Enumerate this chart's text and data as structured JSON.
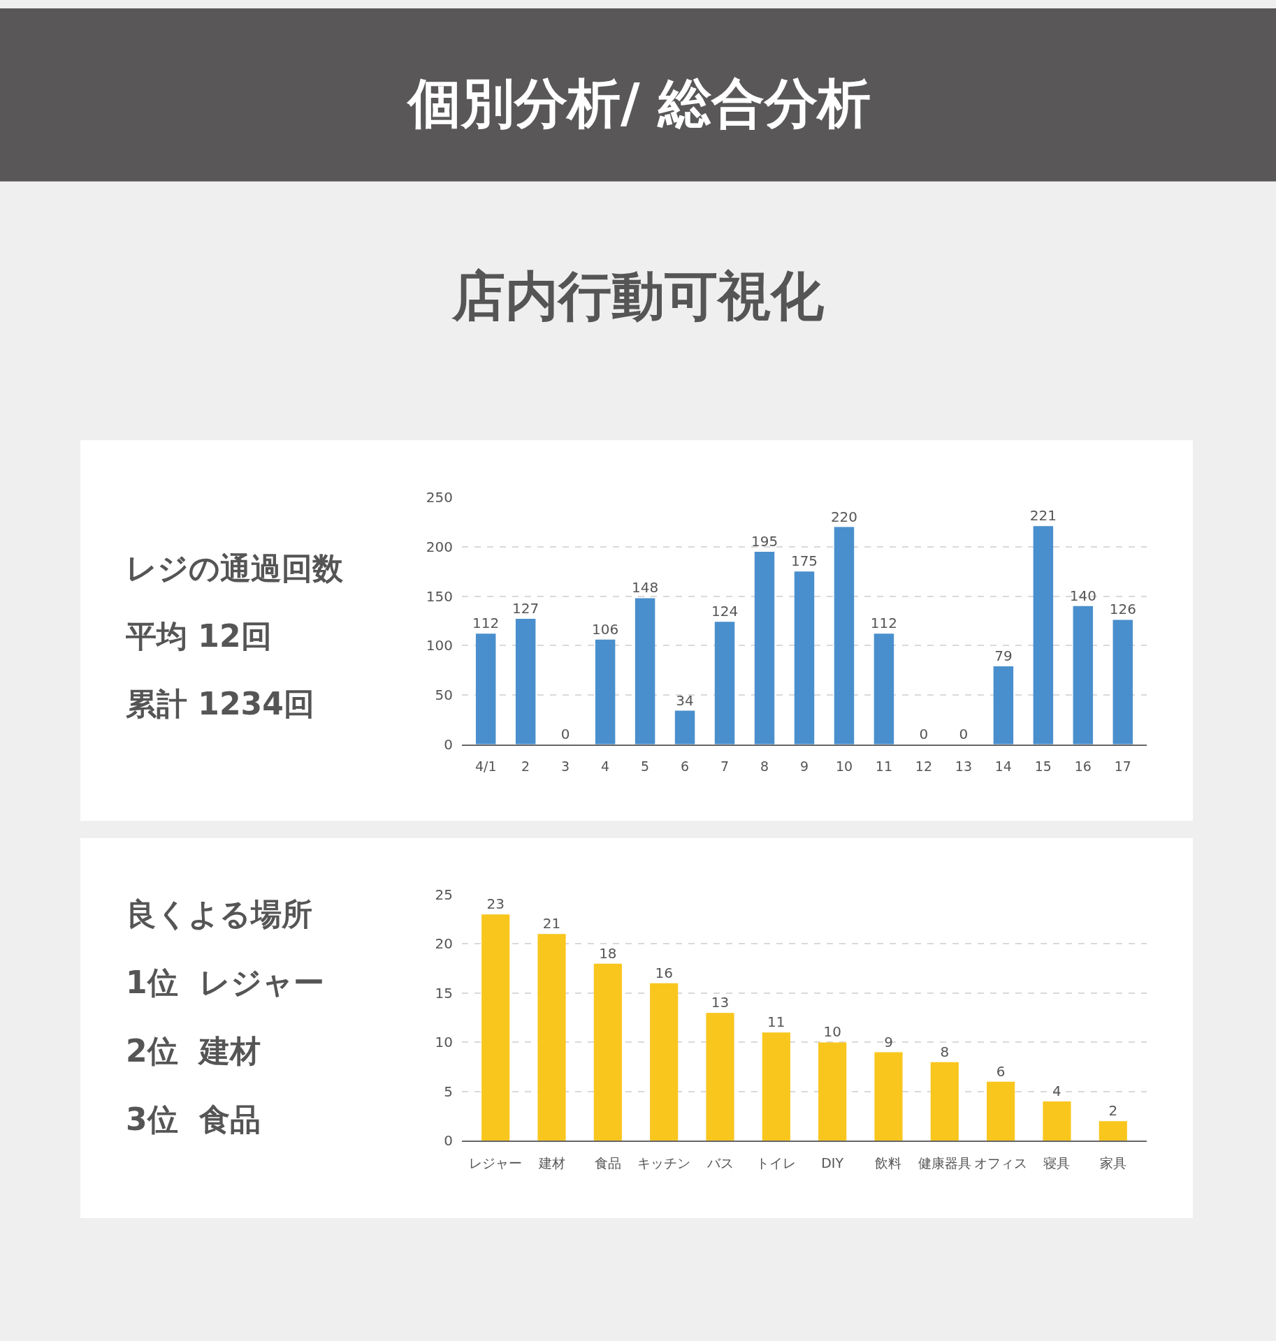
{
  "chart_data": [
    {
      "type": "bar",
      "title": "個別分析/ 総合分析",
      "subtitle": "店内行動可視化",
      "annotations": [
        "レジの通過回数",
        "平均 12回",
        "累計 1234回"
      ],
      "categories": [
        "4/1",
        "2",
        "3",
        "4",
        "5",
        "6",
        "7",
        "8",
        "9",
        "10",
        "11",
        "12",
        "13",
        "14",
        "15",
        "16",
        "17"
      ],
      "values": [
        112,
        127,
        0,
        106,
        148,
        34,
        124,
        195,
        175,
        220,
        112,
        0,
        0,
        79,
        221,
        140,
        126
      ],
      "color": "#4a8fcd",
      "ylim": [
        0,
        250
      ],
      "yticks": [
        0,
        50,
        100,
        150,
        200,
        250
      ],
      "grid": "y",
      "data_labels": true
    },
    {
      "type": "bar",
      "annotations": [
        "良くよる場所",
        "1位  レジャー",
        "2位  建材",
        "3位  食品"
      ],
      "categories": [
        "レジャー",
        "建材",
        "食品",
        "キッチン",
        "バス",
        "トイレ",
        "DIY",
        "飲料",
        "健康器具",
        "オフィス",
        "寝具",
        "家具"
      ],
      "values": [
        23,
        21,
        18,
        16,
        13,
        11,
        10,
        9,
        8,
        6,
        4,
        2
      ],
      "color": "#f9c61e",
      "ylim": [
        0,
        25
      ],
      "yticks": [
        0,
        5,
        10,
        15,
        20,
        25
      ],
      "grid": "y",
      "data_labels": true
    }
  ]
}
